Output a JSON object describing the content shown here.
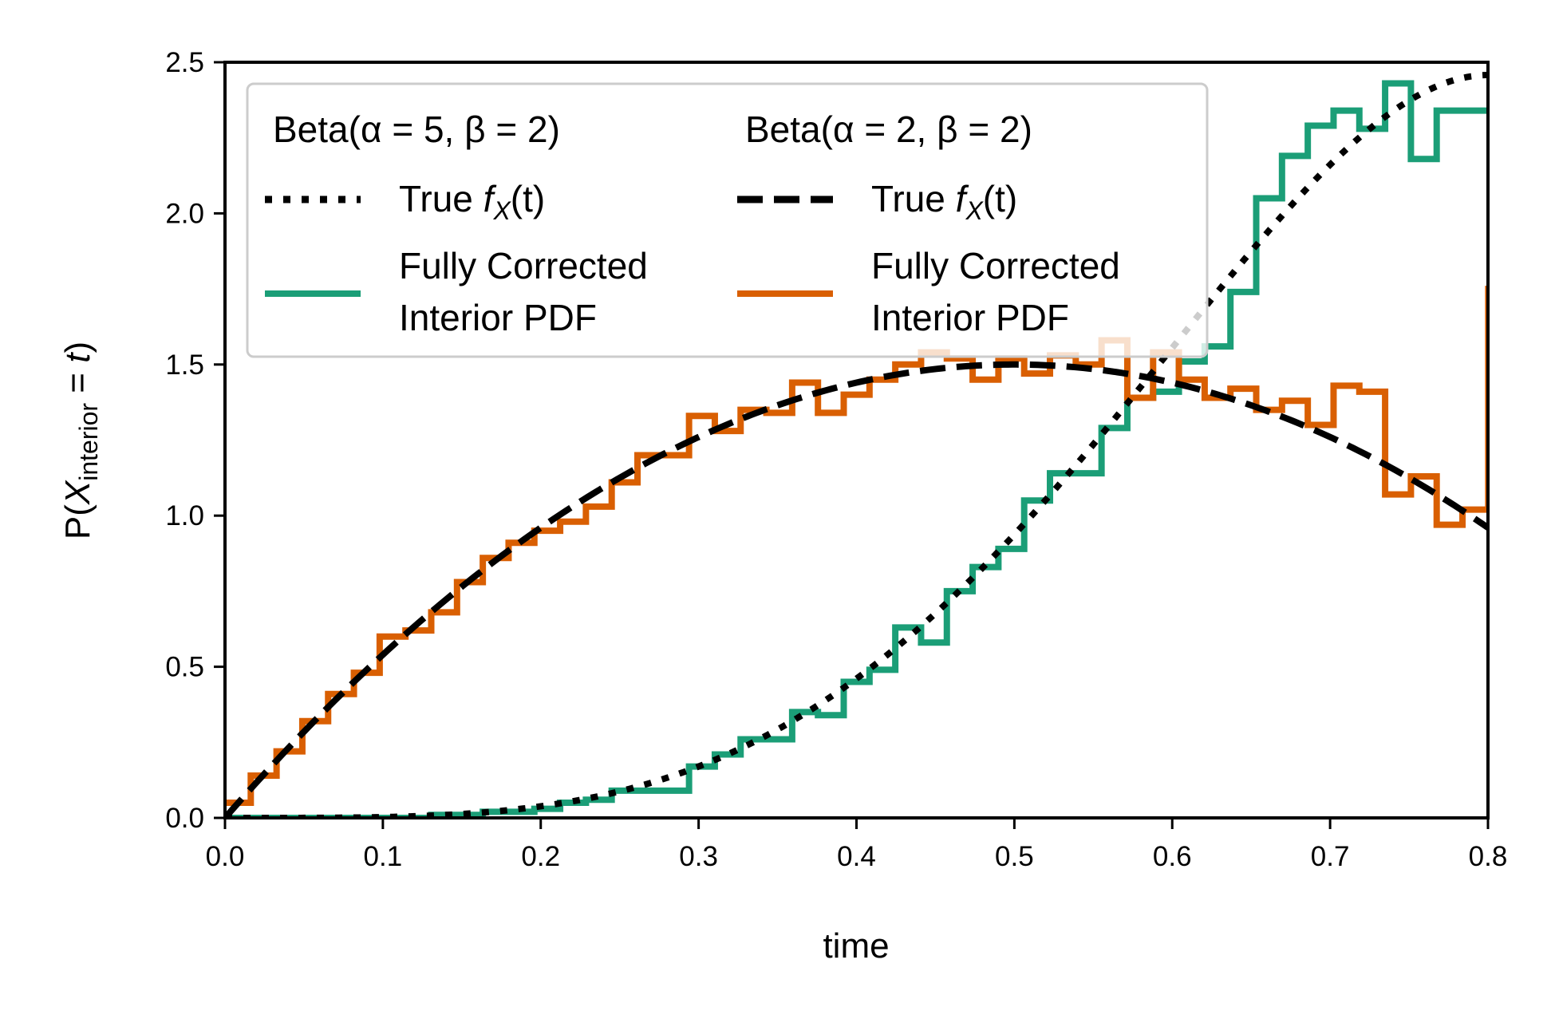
{
  "chart_data": {
    "type": "line",
    "xlabel": "time",
    "ylabel": "P(X_interior = t)",
    "ylabel_parts": {
      "prefix": "P(",
      "var": "X",
      "sub": "interior",
      "eq": " = ",
      "t": "t",
      "close": ")"
    },
    "xlim": [
      0,
      0.8
    ],
    "ylim": [
      0,
      2.5
    ],
    "x_ticks": [
      "0.0",
      "0.1",
      "0.2",
      "0.3",
      "0.4",
      "0.5",
      "0.6",
      "0.7",
      "0.8"
    ],
    "y_ticks": [
      "0.0",
      "0.5",
      "1.0",
      "1.5",
      "2.0",
      "2.5"
    ],
    "grid": false,
    "legend_placement": "upper-left",
    "legend": {
      "groups": [
        {
          "title": "Beta(α = 5, β = 2)",
          "entries": [
            {
              "name_prefix": "True ",
              "name_math": "f",
              "name_sub": "X",
              "name_suffix": "(t)",
              "style": "dotted",
              "color": "#000000"
            },
            {
              "name_line1": "Fully Corrected",
              "name_line2": "Interior PDF",
              "style": "solid",
              "color": "#1b9e77"
            }
          ]
        },
        {
          "title": "Beta(α = 2, β = 2)",
          "entries": [
            {
              "name_prefix": "True ",
              "name_math": "f",
              "name_sub": "X",
              "name_suffix": "(t)",
              "style": "dashed",
              "color": "#000000"
            },
            {
              "name_line1": "Fully Corrected",
              "name_line2": "Interior PDF",
              "style": "solid",
              "color": "#d95f02"
            }
          ]
        }
      ]
    },
    "series": [
      {
        "id": "true-beta-5-2",
        "style": "dotted",
        "color": "#000000",
        "pdf": {
          "alpha": 5,
          "beta": 2
        }
      },
      {
        "id": "true-beta-2-2",
        "style": "dashed",
        "color": "#000000",
        "pdf": {
          "alpha": 2,
          "beta": 2
        }
      },
      {
        "id": "hist-beta-5-2",
        "style": "step",
        "color": "#1b9e77",
        "bin_edges_start": 0.0,
        "bin_width": 0.01633,
        "values": [
          0.0,
          0.0,
          0.0,
          0.0,
          0.0,
          0.0,
          0.0,
          0.0,
          0.01,
          0.01,
          0.02,
          0.02,
          0.03,
          0.05,
          0.06,
          0.09,
          0.09,
          0.09,
          0.17,
          0.21,
          0.26,
          0.26,
          0.35,
          0.34,
          0.45,
          0.49,
          0.63,
          0.58,
          0.75,
          0.83,
          0.89,
          1.05,
          1.14,
          1.14,
          1.29,
          1.39,
          1.41,
          1.51,
          1.56,
          1.74,
          2.05,
          2.19,
          2.29,
          2.34,
          2.28,
          2.43,
          2.18,
          2.34,
          2.34
        ]
      },
      {
        "id": "hist-beta-2-2",
        "style": "step",
        "color": "#d95f02",
        "bin_edges_start": 0.0,
        "bin_width": 0.01633,
        "values": [
          0.05,
          0.14,
          0.22,
          0.32,
          0.41,
          0.48,
          0.6,
          0.62,
          0.68,
          0.78,
          0.86,
          0.91,
          0.95,
          0.98,
          1.03,
          1.11,
          1.2,
          1.2,
          1.33,
          1.28,
          1.35,
          1.34,
          1.44,
          1.34,
          1.4,
          1.45,
          1.5,
          1.54,
          1.52,
          1.45,
          1.52,
          1.47,
          1.53,
          1.5,
          1.58,
          1.39,
          1.54,
          1.45,
          1.39,
          1.42,
          1.35,
          1.38,
          1.3,
          1.43,
          1.41,
          1.07,
          1.13,
          0.97,
          1.02,
          1.75
        ]
      }
    ]
  }
}
